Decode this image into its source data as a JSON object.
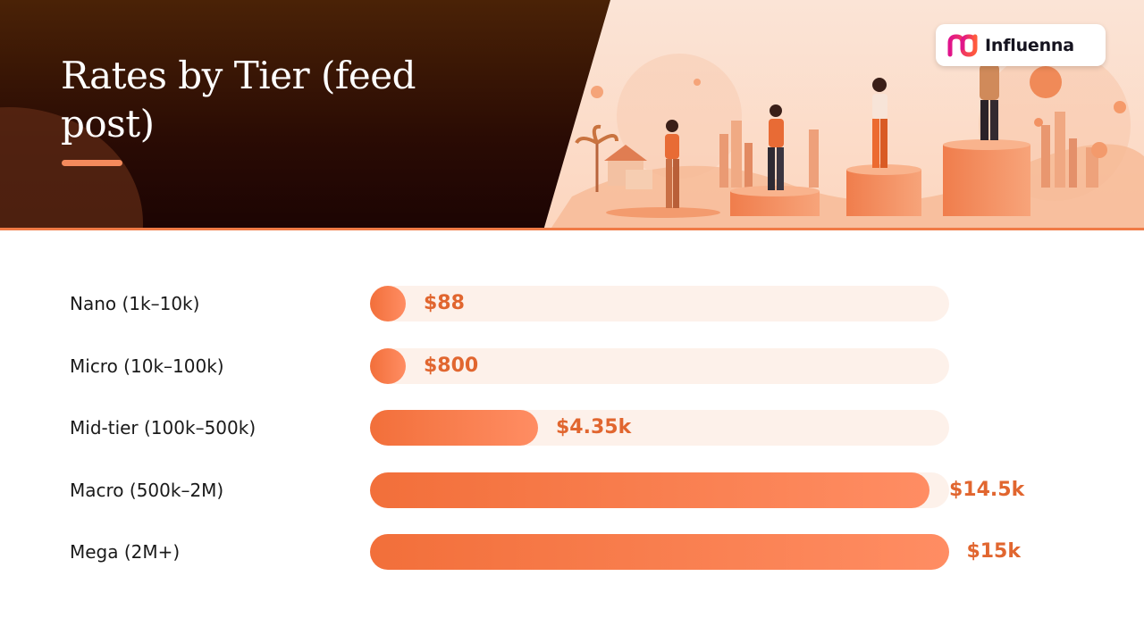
{
  "page": {
    "title": "Rates by Tier (feed post)"
  },
  "brand": {
    "logo_text": "Influenna",
    "accent_color": "#f07a45",
    "logo_gradient": [
      "#e0138c",
      "#ff5a3c"
    ]
  },
  "chart_data": {
    "type": "bar",
    "orientation": "horizontal",
    "title": "Rates by Tier (feed post)",
    "categories": [
      "Nano (1k–10k)",
      "Micro (10k–100k)",
      "Mid-tier (100k–500k)",
      "Macro (500k–2M)",
      "Mega (2M+)"
    ],
    "values": [
      88,
      800,
      4350,
      14500,
      15000
    ],
    "value_labels": [
      "$88",
      "$800",
      "$4.35k",
      "$14.5k",
      "$15k"
    ],
    "xlim": [
      0,
      15000
    ],
    "grid": false,
    "legend": "none"
  }
}
